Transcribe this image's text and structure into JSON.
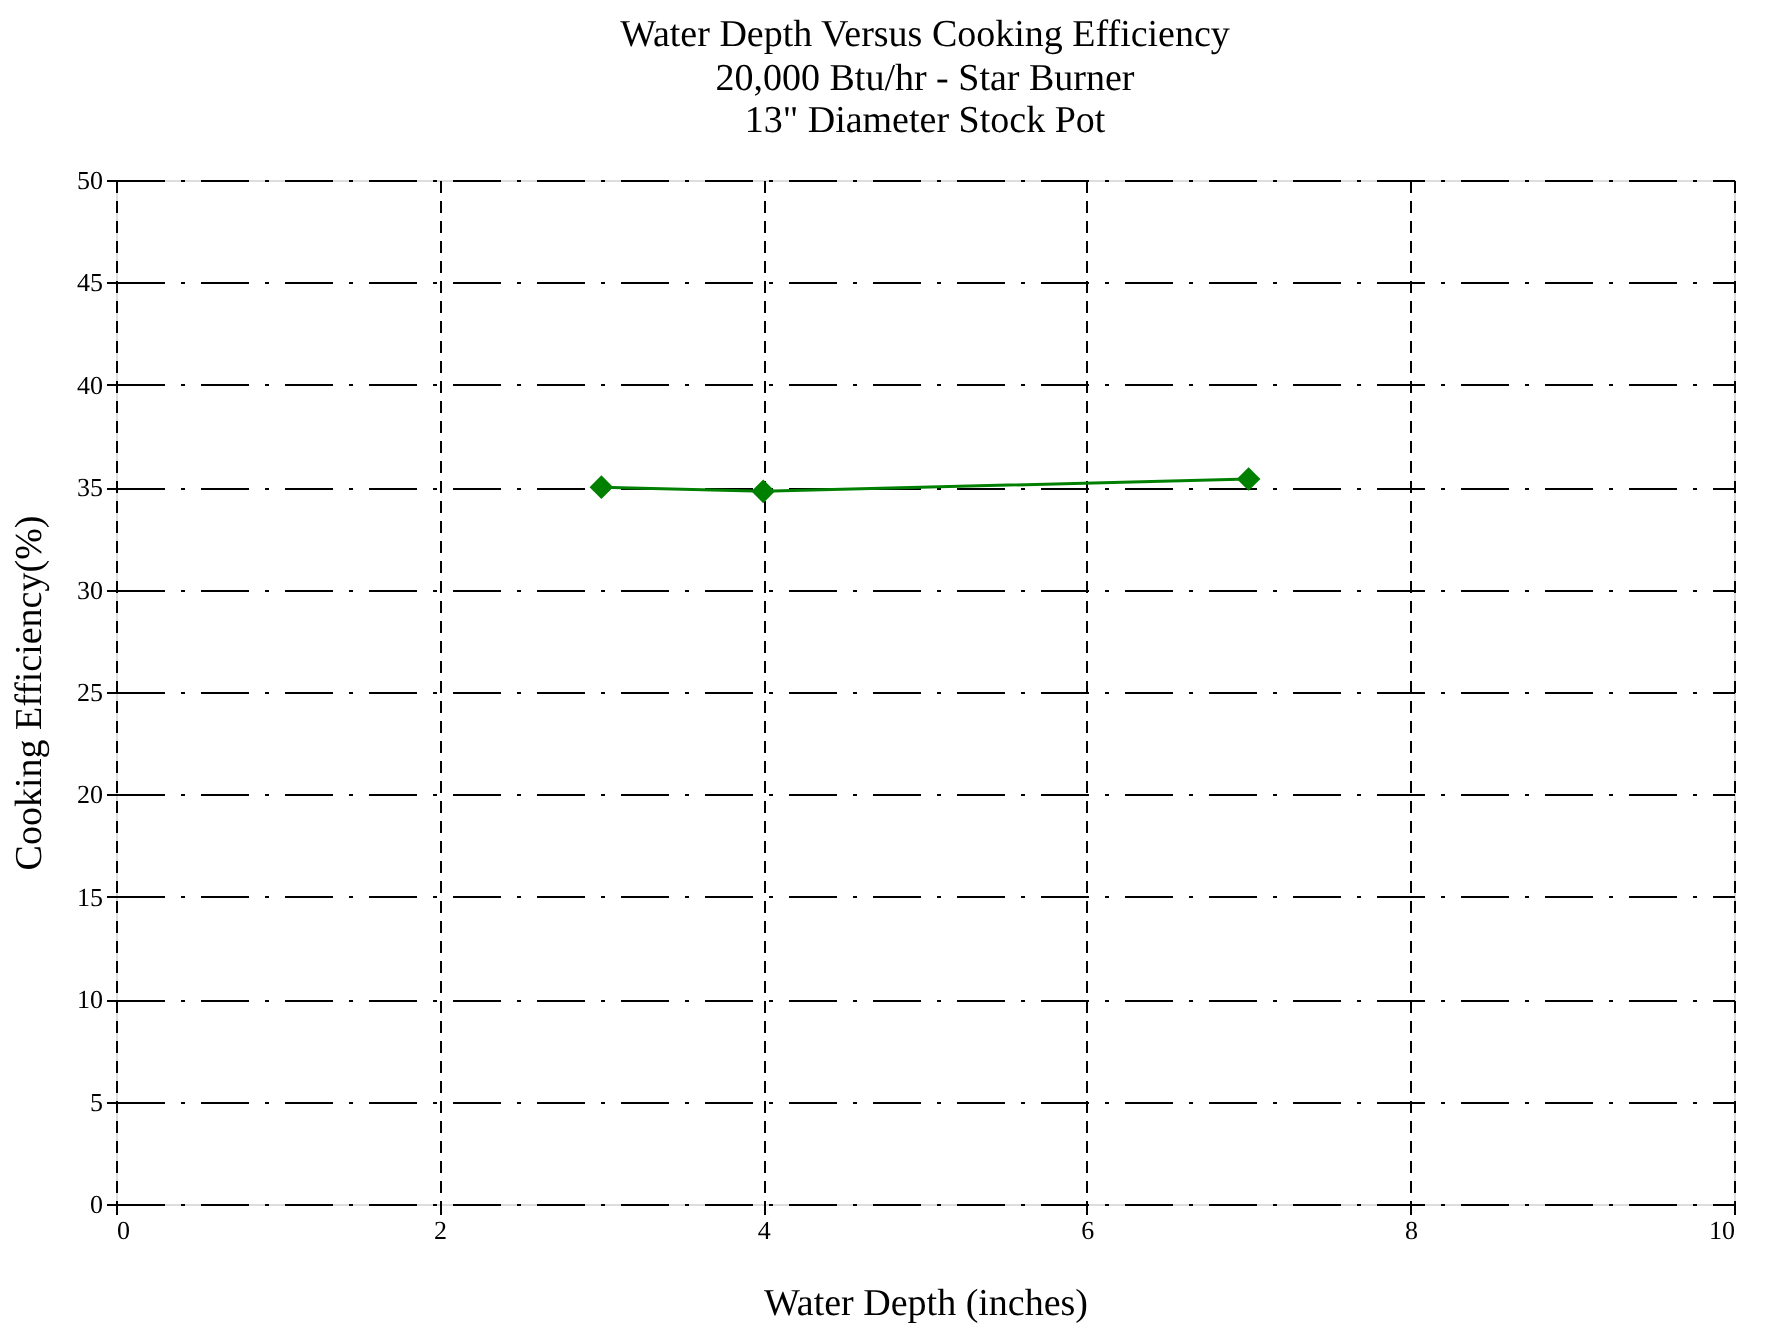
{
  "chart_data": {
    "type": "line",
    "title": "Water Depth Versus Cooking Efficiency",
    "subtitle": "20,000 Btu/hr  - Star Burner\n13\"  Diameter Stock Pot",
    "xlabel": "Water Depth (inches)",
    "ylabel": "Cooking Efficiency(%)",
    "x": [
      3,
      4,
      7
    ],
    "series": [
      {
        "color": "#008000",
        "values": [
          35.0,
          34.8,
          35.4
        ]
      }
    ],
    "xlim": [
      0,
      10
    ],
    "xticks": [
      0,
      2,
      4,
      6,
      8,
      10
    ],
    "ylim": [
      0,
      50
    ],
    "yticks": [
      0,
      5,
      10,
      15,
      20,
      25,
      30,
      35,
      40,
      45,
      50
    ],
    "grid": true,
    "marker": "diamond",
    "line_style": "solid"
  }
}
